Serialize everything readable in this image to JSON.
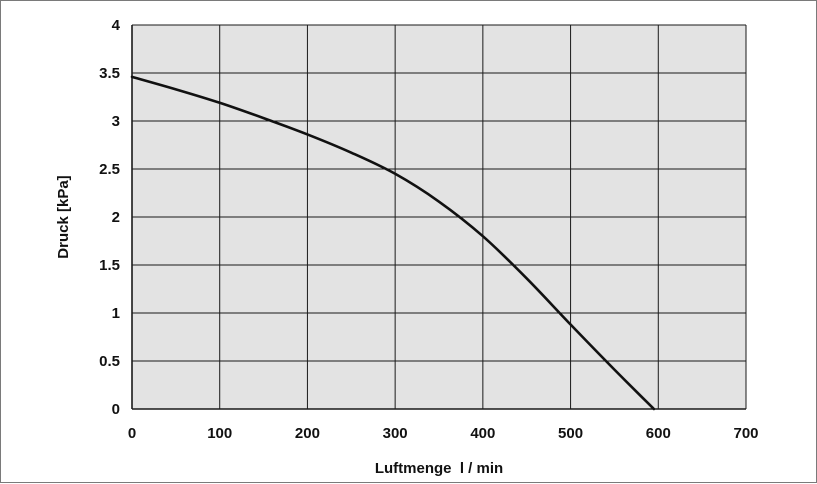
{
  "chart_data": {
    "type": "line",
    "title": "",
    "xlabel": "Luftmenge  l / min",
    "ylabel": "Druck [kPa]",
    "xlim": [
      0,
      700
    ],
    "ylim": [
      0,
      4
    ],
    "xticks": [
      0,
      100,
      200,
      300,
      400,
      500,
      600,
      700
    ],
    "yticks": [
      0,
      0.5,
      1,
      1.5,
      2,
      2.5,
      3,
      3.5,
      4
    ],
    "xtick_labels": [
      "0",
      "100",
      "200",
      "300",
      "400",
      "500",
      "600",
      "700"
    ],
    "ytick_labels": [
      "0",
      "0.5",
      "1",
      "1.5",
      "2",
      "2.5",
      "3",
      "3.5",
      "4"
    ],
    "grid": true,
    "legend": "none",
    "colors": {
      "plot_background": "#e3e3e3",
      "grid": "#1a1a1a",
      "line": "#111111"
    },
    "series": [
      {
        "x": [
          0,
          50,
          100,
          150,
          200,
          250,
          300,
          350,
          400,
          450,
          500,
          550,
          595
        ],
        "y": [
          3.46,
          3.33,
          3.19,
          3.03,
          2.86,
          2.67,
          2.45,
          2.16,
          1.8,
          1.36,
          0.88,
          0.41,
          0.0
        ]
      }
    ]
  }
}
